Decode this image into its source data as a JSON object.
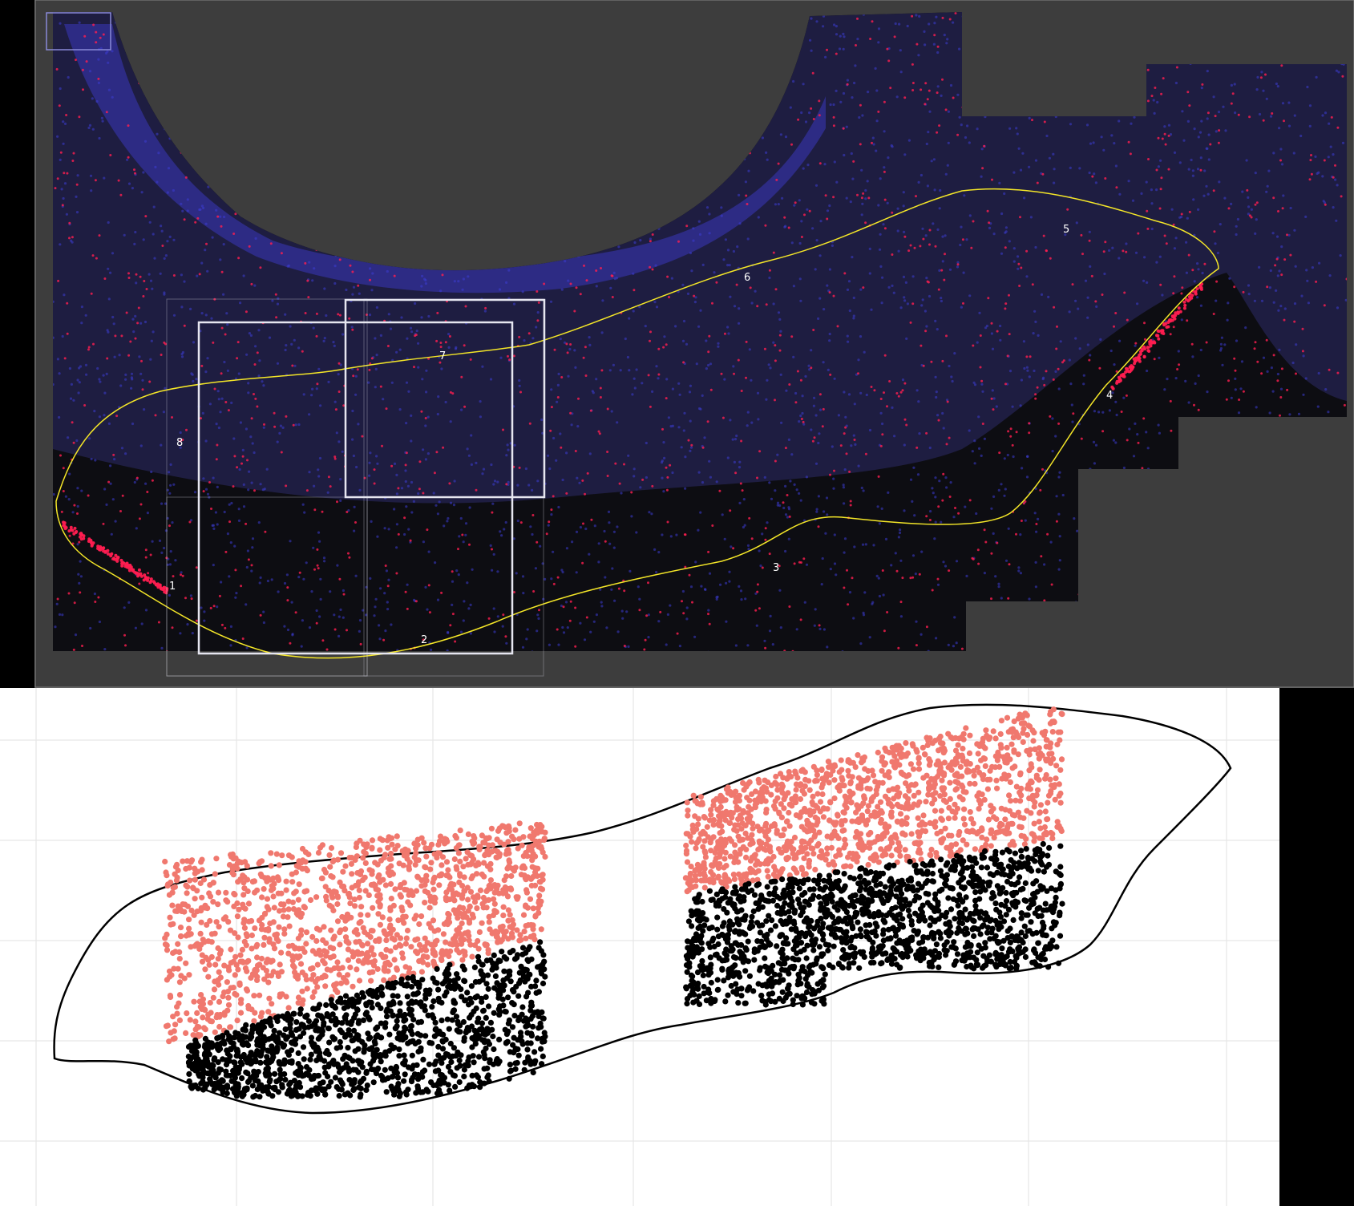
{
  "microscopy": {
    "boundary_point_labels": [
      "1",
      "2",
      "3",
      "4",
      "5",
      "6",
      "7",
      "8"
    ],
    "colors": {
      "background_gray": "#3d3d3d",
      "tissue_dark": "#0d0d12",
      "nucleus_blue": "#3c3cd2",
      "marker_red": "#ff1e50",
      "boundary_yellow": "#f4e628",
      "selection_box": "#e6e6f0"
    }
  },
  "scatter_plot": {
    "colors": {
      "background": "#ffffff",
      "grid": "#e6e6e6",
      "outline": "#000000",
      "upper_cells": "#f0786e",
      "lower_cells": "#000000"
    },
    "grid": true
  }
}
